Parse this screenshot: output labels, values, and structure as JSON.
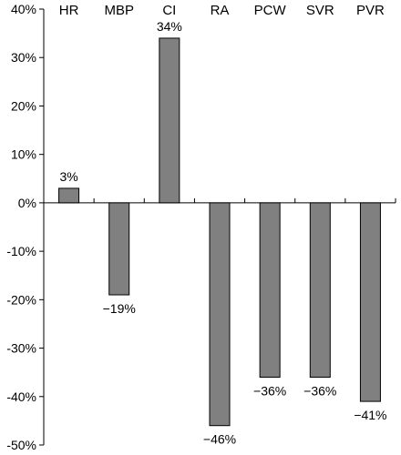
{
  "chart_data": {
    "type": "bar",
    "categories": [
      "HR",
      "MBP",
      "CI",
      "RA",
      "PCW",
      "SVR",
      "PVR"
    ],
    "values": [
      3,
      -19,
      34,
      -46,
      -36,
      -36,
      -41
    ],
    "value_labels": [
      "3%",
      "−19%",
      "34%",
      "−46%",
      "−36%",
      "−36%",
      "−41%"
    ],
    "y_ticks": [
      {
        "value": 40,
        "label": "40%"
      },
      {
        "value": 30,
        "label": "30%"
      },
      {
        "value": 20,
        "label": "20%"
      },
      {
        "value": 10,
        "label": "10%"
      },
      {
        "value": 0,
        "label": "0%"
      },
      {
        "value": -10,
        "label": "-10%"
      },
      {
        "value": -20,
        "label": "-20%"
      },
      {
        "value": -30,
        "label": "-30%"
      },
      {
        "value": -40,
        "label": "-40%"
      },
      {
        "value": -50,
        "label": "-50%"
      }
    ],
    "ylim": [
      -50,
      40
    ],
    "category_label_position": "top",
    "grid": false,
    "bar_color": "#808080",
    "bar_edge_color": "#000000"
  }
}
